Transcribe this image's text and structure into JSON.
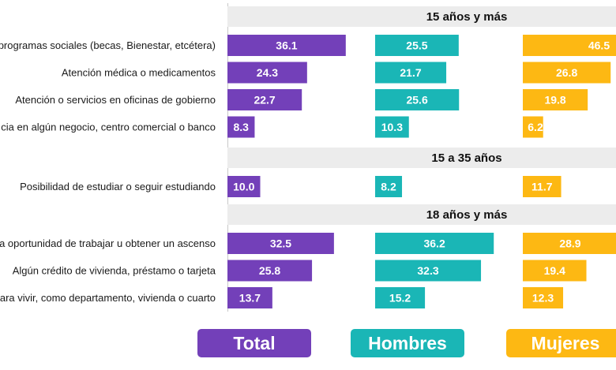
{
  "chart_data": {
    "type": "bar",
    "orientation": "horizontal",
    "layout": "small-multiples-by-series",
    "grid": false,
    "series_colors": {
      "Total": "#7340b9",
      "Hombres": "#1ab6b6",
      "Mujeres": "#fdb813"
    },
    "legend": [
      "Total",
      "Hombres",
      "Mujeres"
    ],
    "sections": [
      {
        "title": "15 años y más",
        "categories": [
          "programas sociales (becas, Bienestar, etcétera)",
          "Atención médica o medicamentos",
          "Atención o servicios en oficinas de gobierno",
          "cia en algún negocio, centro comercial o banco"
        ],
        "series": [
          {
            "name": "Total",
            "values": [
              36.1,
              24.3,
              22.7,
              8.3
            ]
          },
          {
            "name": "Hombres",
            "values": [
              25.5,
              21.7,
              25.6,
              10.3
            ]
          },
          {
            "name": "Mujeres",
            "values": [
              46.5,
              26.8,
              19.8,
              6.2
            ]
          }
        ]
      },
      {
        "title": "15 a 35 años",
        "categories": [
          "Posibilidad de estudiar o seguir estudiando"
        ],
        "series": [
          {
            "name": "Total",
            "values": [
              10.0
            ]
          },
          {
            "name": "Hombres",
            "values": [
              8.2
            ]
          },
          {
            "name": "Mujeres",
            "values": [
              11.7
            ]
          }
        ]
      },
      {
        "title": "18 años y más",
        "categories": [
          "a oportunidad de trabajar u obtener un ascenso",
          "Algún crédito de vivienda, préstamo o tarjeta",
          "ara vivir, como departamento, vivienda o cuarto"
        ],
        "series": [
          {
            "name": "Total",
            "values": [
              32.5,
              25.8,
              13.7
            ]
          },
          {
            "name": "Hombres",
            "values": [
              36.2,
              32.3,
              15.2
            ]
          },
          {
            "name": "Mujeres",
            "values": [
              28.9,
              19.4,
              12.3
            ]
          }
        ]
      }
    ]
  }
}
